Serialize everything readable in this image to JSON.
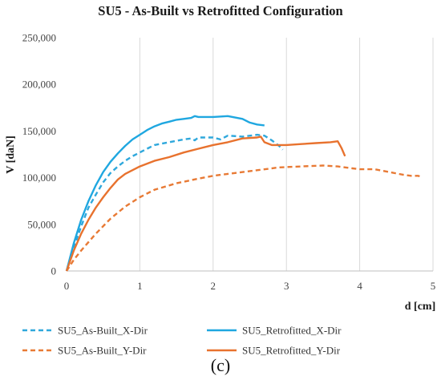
{
  "chart_data": {
    "type": "line",
    "title": "SU5 - As-Built vs Retrofitted Configuration",
    "xlabel": "d [cm]",
    "ylabel": "V [daN]",
    "xlim": [
      0,
      5
    ],
    "ylim": [
      0,
      250000
    ],
    "x_ticks": [
      "0",
      "1",
      "2",
      "3",
      "4",
      "5"
    ],
    "y_ticks": [
      "0",
      "50,000",
      "100,000",
      "150,000",
      "200,000",
      "250,000"
    ],
    "x_tick_values": [
      0,
      1,
      2,
      3,
      4,
      5
    ],
    "y_tick_values": [
      0,
      50000,
      100000,
      150000,
      200000,
      250000
    ],
    "grid": "vertical",
    "legend_position": "bottom",
    "caption": "(c)",
    "series": [
      {
        "name": "SU5_As-Built_X-Dir",
        "color": "#2FA8DC",
        "dash": "dashed",
        "x": [
          0,
          0.1,
          0.2,
          0.3,
          0.4,
          0.5,
          0.6,
          0.7,
          0.8,
          0.9,
          1.0,
          1.1,
          1.2,
          1.4,
          1.6,
          1.7,
          1.75,
          1.8,
          2.0,
          2.1,
          2.2,
          2.4,
          2.6,
          2.7,
          2.8,
          2.9,
          2.95
        ],
        "y": [
          0,
          25000,
          48000,
          68000,
          82000,
          95000,
          105000,
          112000,
          118000,
          123000,
          127000,
          131000,
          135000,
          138000,
          141000,
          142000,
          140000,
          143000,
          143000,
          141000,
          145000,
          144000,
          146000,
          145000,
          140000,
          134000,
          130000
        ]
      },
      {
        "name": "SU5_Retrofitted_X-Dir",
        "color": "#1FA7E0",
        "dash": "solid",
        "x": [
          0,
          0.1,
          0.2,
          0.3,
          0.4,
          0.5,
          0.6,
          0.7,
          0.8,
          0.9,
          1.0,
          1.1,
          1.2,
          1.3,
          1.4,
          1.5,
          1.6,
          1.7,
          1.75,
          1.8,
          1.9,
          2.0,
          2.2,
          2.4,
          2.5,
          2.6,
          2.7
        ],
        "y": [
          0,
          30000,
          55000,
          75000,
          92000,
          106000,
          117000,
          126000,
          134000,
          141000,
          146000,
          151000,
          155000,
          158000,
          160000,
          162000,
          163000,
          164000,
          166000,
          165000,
          165000,
          165000,
          166000,
          163000,
          159000,
          157000,
          156000
        ]
      },
      {
        "name": "SU5_As-Built_Y-Dir",
        "color": "#E87A35",
        "dash": "dashed",
        "x": [
          0,
          0.1,
          0.2,
          0.4,
          0.6,
          0.8,
          1.0,
          1.2,
          1.5,
          1.8,
          2.0,
          2.3,
          2.6,
          2.9,
          3.2,
          3.5,
          3.7,
          3.9,
          4.0,
          4.2,
          4.4,
          4.6,
          4.7,
          4.8,
          4.85
        ],
        "y": [
          0,
          12000,
          22000,
          40000,
          56000,
          69000,
          79000,
          87000,
          94000,
          99000,
          102000,
          105000,
          108000,
          111000,
          112000,
          113000,
          112000,
          110000,
          109000,
          109000,
          106000,
          103000,
          102000,
          102000,
          100000
        ]
      },
      {
        "name": "SU5_Retrofitted_Y-Dir",
        "color": "#E8722E",
        "dash": "solid",
        "x": [
          0,
          0.1,
          0.2,
          0.3,
          0.4,
          0.5,
          0.6,
          0.7,
          0.8,
          1.0,
          1.2,
          1.4,
          1.6,
          1.8,
          2.0,
          2.2,
          2.4,
          2.6,
          2.65,
          2.7,
          2.8,
          3.0,
          3.2,
          3.4,
          3.6,
          3.7,
          3.75,
          3.8
        ],
        "y": [
          0,
          22000,
          40000,
          55000,
          68000,
          79000,
          89000,
          98000,
          104000,
          112000,
          118000,
          122000,
          127000,
          131000,
          135000,
          138000,
          142000,
          143000,
          144000,
          138000,
          135000,
          135000,
          136000,
          137000,
          138000,
          139000,
          132000,
          123000
        ]
      }
    ]
  }
}
